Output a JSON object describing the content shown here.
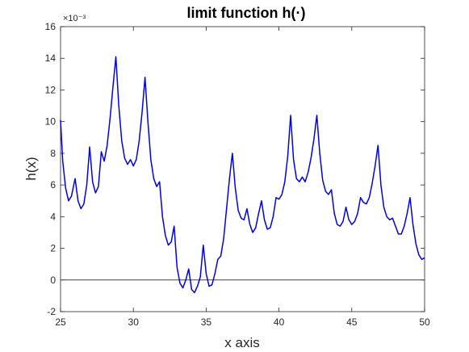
{
  "chart_data": {
    "type": "line",
    "title": "limit function h(·)",
    "xlabel": "x axis",
    "ylabel": "h(x)",
    "y_exponent_label": "×10⁻³",
    "xlim": [
      25,
      50
    ],
    "ylim": [
      -2,
      16
    ],
    "xticks": [
      25,
      30,
      35,
      40,
      45,
      50
    ],
    "yticks": [
      -2,
      0,
      2,
      4,
      6,
      8,
      10,
      12,
      14,
      16
    ],
    "grid": false,
    "legend": "none",
    "reference_line_y": 0,
    "colors": {
      "series": "#0000ee",
      "reference": "#444444",
      "axes": "#262626"
    },
    "series": [
      {
        "x": [
          25.0,
          25.15,
          25.35,
          25.55,
          25.75,
          26.0,
          26.2,
          26.4,
          26.6,
          26.8,
          27.0,
          27.2,
          27.4,
          27.6,
          27.8,
          28.0,
          28.2,
          28.4,
          28.6,
          28.8,
          29.0,
          29.2,
          29.4,
          29.6,
          29.8,
          30.0,
          30.2,
          30.4,
          30.6,
          30.8,
          31.0,
          31.2,
          31.4,
          31.6,
          31.8,
          32.0,
          32.2,
          32.4,
          32.6,
          32.8,
          33.0,
          33.2,
          33.4,
          33.6,
          33.8,
          34.0,
          34.2,
          34.4,
          34.6,
          34.8,
          35.0,
          35.2,
          35.4,
          35.6,
          35.8,
          36.0,
          36.2,
          36.4,
          36.6,
          36.8,
          37.0,
          37.2,
          37.4,
          37.6,
          37.8,
          38.0,
          38.2,
          38.4,
          38.6,
          38.8,
          39.0,
          39.2,
          39.4,
          39.6,
          39.8,
          40.0,
          40.2,
          40.4,
          40.6,
          40.8,
          41.0,
          41.2,
          41.4,
          41.6,
          41.8,
          42.0,
          42.2,
          42.4,
          42.6,
          42.8,
          43.0,
          43.2,
          43.4,
          43.6,
          43.8,
          44.0,
          44.2,
          44.4,
          44.6,
          44.8,
          45.0,
          45.2,
          45.4,
          45.6,
          45.8,
          46.0,
          46.2,
          46.4,
          46.6,
          46.8,
          47.0,
          47.2,
          47.4,
          47.6,
          47.8,
          48.0,
          48.2,
          48.4,
          48.6,
          48.8,
          49.0,
          49.2,
          49.4,
          49.6,
          49.8,
          50.0
        ],
        "values": [
          10.1,
          7.5,
          5.8,
          5.0,
          5.3,
          6.4,
          5.0,
          4.5,
          4.8,
          6.0,
          8.4,
          6.2,
          5.5,
          5.9,
          8.1,
          7.5,
          8.5,
          10.2,
          12.2,
          14.1,
          11.0,
          8.8,
          7.7,
          7.3,
          7.6,
          7.2,
          7.6,
          8.8,
          10.6,
          12.8,
          10.0,
          7.6,
          6.4,
          5.9,
          6.2,
          4.0,
          2.8,
          2.2,
          2.4,
          3.4,
          0.8,
          -0.2,
          -0.5,
          0.0,
          0.7,
          -0.6,
          -0.8,
          -0.4,
          0.2,
          2.2,
          0.4,
          -0.4,
          -0.3,
          0.4,
          1.3,
          1.5,
          2.6,
          4.5,
          6.4,
          8.0,
          5.8,
          4.4,
          3.9,
          3.8,
          4.5,
          3.5,
          3.0,
          3.3,
          4.2,
          5.0,
          3.8,
          3.2,
          3.3,
          4.0,
          5.2,
          5.1,
          5.4,
          6.2,
          7.8,
          10.4,
          7.6,
          6.4,
          6.2,
          6.5,
          6.2,
          6.8,
          7.7,
          8.9,
          10.4,
          8.0,
          6.3,
          5.6,
          5.4,
          5.7,
          4.2,
          3.5,
          3.4,
          3.7,
          4.6,
          3.8,
          3.5,
          3.7,
          4.2,
          5.2,
          4.9,
          4.8,
          5.2,
          6.1,
          7.2,
          8.5,
          6.0,
          4.6,
          4.0,
          3.8,
          3.9,
          3.4,
          2.9,
          2.9,
          3.4,
          4.2,
          5.2,
          3.5,
          2.3,
          1.6,
          1.3,
          1.4
        ]
      }
    ]
  }
}
